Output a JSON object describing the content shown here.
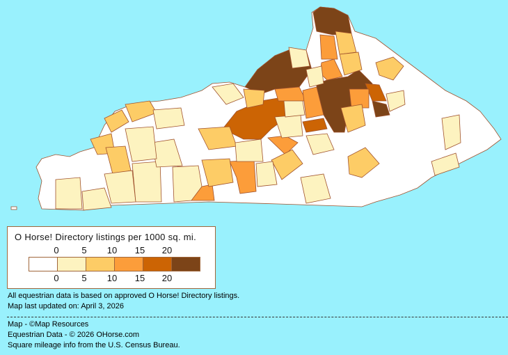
{
  "legend": {
    "title": "O Horse! Directory listings per 1000 sq. mi.",
    "ticks": [
      "0",
      "5",
      "10",
      "15",
      "20"
    ],
    "colors": [
      "#ffffff",
      "#fdf3c0",
      "#fdcc66",
      "#fc9d3a",
      "#cc6404",
      "#7c4418"
    ]
  },
  "notes": {
    "line1": "All equestrian data is based on approved O Horse! Directory listings.",
    "line2": "Map last updated on: April 3, 2026"
  },
  "credits": {
    "map": "Map - ©Map Resources",
    "data": "Equestrian Data - © 2026 OHorse.com",
    "census": "Square mileage info from the U.S. Census Bureau."
  },
  "map": {
    "region": "Kentucky counties",
    "border_color": "#a0522d"
  }
}
